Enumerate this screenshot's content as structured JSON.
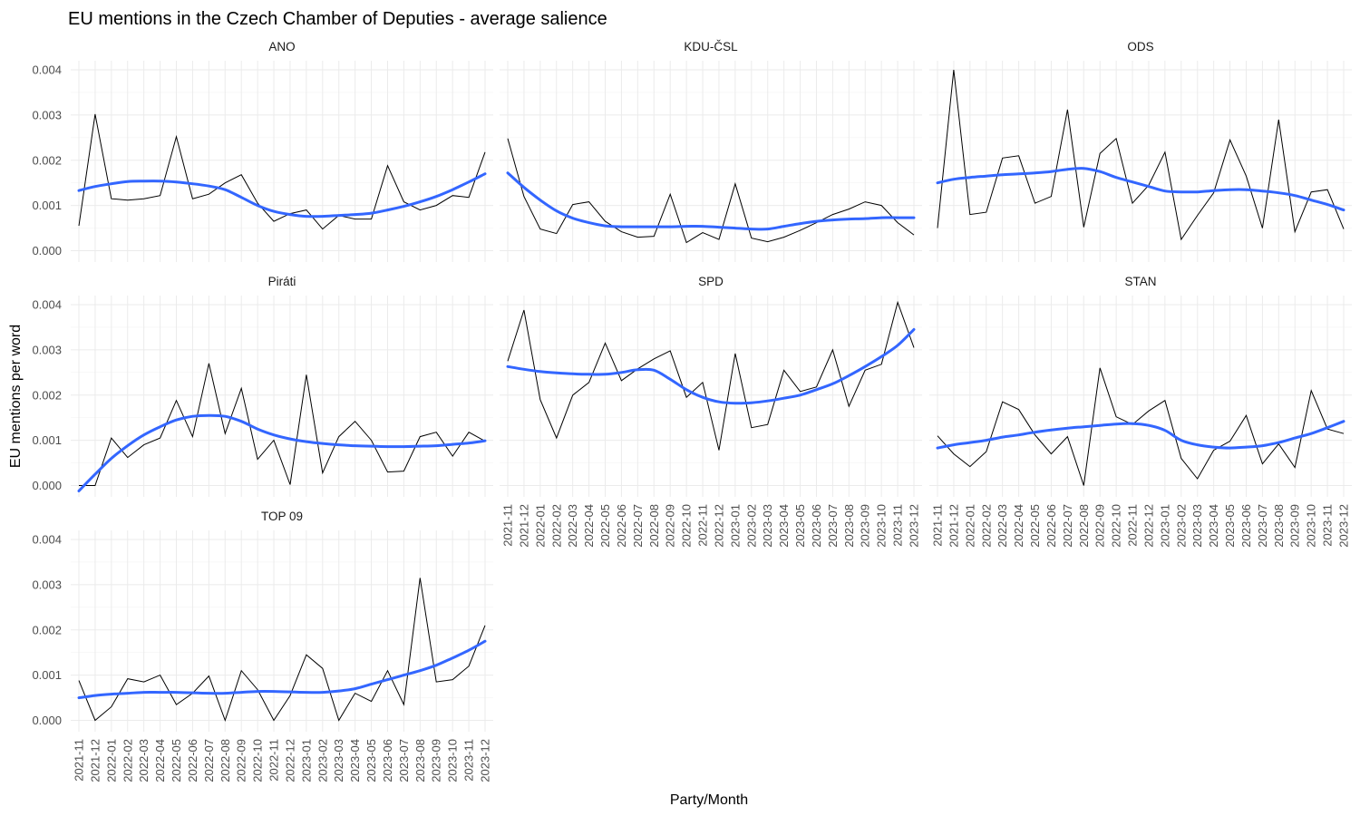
{
  "chart_data": {
    "type": "line",
    "title": "EU mentions in the Czech Chamber of Deputies - average salience",
    "xlabel": "Party/Month",
    "ylabel": "EU mentions per word",
    "ylim": [
      -0.00025,
      0.0042
    ],
    "y_ticks": [
      "0.000",
      "0.001",
      "0.002",
      "0.003",
      "0.004"
    ],
    "y_tick_values": [
      0,
      0.001,
      0.002,
      0.003,
      0.004
    ],
    "grid": true,
    "colors": {
      "raw": "#000000",
      "smooth": "#3366ff"
    },
    "categories": [
      "2021-11",
      "2021-12",
      "2022-01",
      "2022-02",
      "2022-03",
      "2022-04",
      "2022-05",
      "2022-06",
      "2022-07",
      "2022-08",
      "2022-09",
      "2022-10",
      "2022-11",
      "2022-12",
      "2023-01",
      "2023-02",
      "2023-03",
      "2023-04",
      "2023-05",
      "2023-06",
      "2023-07",
      "2023-08",
      "2023-09",
      "2023-10",
      "2023-11",
      "2023-12"
    ],
    "panels": [
      {
        "name": "ANO",
        "values": [
          0.00055,
          0.00302,
          0.00115,
          0.00112,
          0.00115,
          0.00122,
          0.00252,
          0.00115,
          0.00125,
          0.0015,
          0.00168,
          0.00105,
          0.00065,
          0.00082,
          0.0009,
          0.00048,
          0.00078,
          0.0007,
          0.0007,
          0.00188,
          0.00108,
          0.0009,
          0.001,
          0.00122,
          0.00118,
          0.00218
        ],
        "smooth": [
          0.00133,
          0.00142,
          0.00148,
          0.00153,
          0.00154,
          0.00154,
          0.00152,
          0.00148,
          0.00143,
          0.00135,
          0.00118,
          0.001,
          0.00087,
          0.0008,
          0.00076,
          0.00076,
          0.00078,
          0.0008,
          0.00083,
          0.0009,
          0.00098,
          0.00108,
          0.0012,
          0.00135,
          0.00152,
          0.0017
        ]
      },
      {
        "name": "KDU-ČSL",
        "values": [
          0.00248,
          0.0012,
          0.00048,
          0.00038,
          0.00102,
          0.00108,
          0.00065,
          0.00042,
          0.0003,
          0.00032,
          0.00125,
          0.00018,
          0.0004,
          0.00025,
          0.00148,
          0.00028,
          0.0002,
          0.0003,
          0.00045,
          0.00062,
          0.0008,
          0.00092,
          0.00108,
          0.001,
          0.00062,
          0.00035
        ],
        "smooth": [
          0.00172,
          0.0014,
          0.00112,
          0.00088,
          0.00072,
          0.00062,
          0.00055,
          0.00053,
          0.00053,
          0.00053,
          0.00053,
          0.00054,
          0.00054,
          0.00052,
          0.0005,
          0.00048,
          0.00048,
          0.00054,
          0.0006,
          0.00065,
          0.00068,
          0.0007,
          0.00071,
          0.00073,
          0.00073,
          0.00073
        ]
      },
      {
        "name": "ODS",
        "values": [
          0.0005,
          0.004,
          0.0008,
          0.00085,
          0.00205,
          0.0021,
          0.00105,
          0.0012,
          0.00312,
          0.00052,
          0.00215,
          0.00248,
          0.00105,
          0.00145,
          0.00218,
          0.00025,
          0.00078,
          0.00128,
          0.00245,
          0.00165,
          0.0005,
          0.0029,
          0.00042,
          0.0013,
          0.00135,
          0.00048
        ],
        "smooth": [
          0.0015,
          0.00158,
          0.00162,
          0.00165,
          0.00168,
          0.0017,
          0.00172,
          0.00175,
          0.0018,
          0.00182,
          0.00175,
          0.00162,
          0.00152,
          0.00142,
          0.00132,
          0.0013,
          0.0013,
          0.00133,
          0.00135,
          0.00135,
          0.00132,
          0.00128,
          0.00122,
          0.00112,
          0.00102,
          0.0009
        ]
      },
      {
        "name": "Piráti",
        "values": [
          0.0,
          0.0,
          0.00105,
          0.00062,
          0.0009,
          0.00105,
          0.00188,
          0.00108,
          0.0027,
          0.00115,
          0.00215,
          0.00058,
          0.001,
          2e-05,
          0.00245,
          0.00028,
          0.00108,
          0.00142,
          0.001,
          0.0003,
          0.00032,
          0.00108,
          0.00118,
          0.00065,
          0.00118,
          0.00098
        ],
        "smooth": [
          -0.00012,
          0.00025,
          0.0006,
          0.00088,
          0.00112,
          0.0013,
          0.00145,
          0.00153,
          0.00155,
          0.00153,
          0.00142,
          0.00125,
          0.00112,
          0.00103,
          0.00097,
          0.00093,
          0.0009,
          0.00088,
          0.00087,
          0.00086,
          0.00086,
          0.00087,
          0.00088,
          0.00091,
          0.00094,
          0.00099
        ]
      },
      {
        "name": "SPD",
        "values": [
          0.00275,
          0.00388,
          0.0019,
          0.00105,
          0.002,
          0.00228,
          0.00315,
          0.00232,
          0.00258,
          0.0028,
          0.00298,
          0.00195,
          0.00228,
          0.00078,
          0.00292,
          0.00128,
          0.00135,
          0.00255,
          0.00208,
          0.00218,
          0.003,
          0.00175,
          0.00255,
          0.00268,
          0.00405,
          0.00305
        ],
        "smooth": [
          0.00263,
          0.00257,
          0.00252,
          0.00249,
          0.00247,
          0.00246,
          0.00246,
          0.0025,
          0.00256,
          0.00255,
          0.00235,
          0.00212,
          0.00195,
          0.00185,
          0.00182,
          0.00183,
          0.00187,
          0.00193,
          0.002,
          0.00212,
          0.00225,
          0.00243,
          0.00263,
          0.00285,
          0.0031,
          0.00345
        ]
      },
      {
        "name": "STAN",
        "values": [
          0.0011,
          0.0007,
          0.00042,
          0.00075,
          0.00185,
          0.00168,
          0.00112,
          0.0007,
          0.00108,
          0.0,
          0.0026,
          0.00152,
          0.00135,
          0.00165,
          0.00188,
          0.0006,
          0.00015,
          0.00078,
          0.00098,
          0.00155,
          0.00048,
          0.00092,
          0.0004,
          0.0021,
          0.00125,
          0.00115
        ],
        "smooth": [
          0.00083,
          0.0009,
          0.00095,
          0.001,
          0.00107,
          0.00112,
          0.00118,
          0.00123,
          0.00127,
          0.0013,
          0.00133,
          0.00136,
          0.00137,
          0.00133,
          0.00122,
          0.001,
          0.0009,
          0.00085,
          0.00083,
          0.00085,
          0.00088,
          0.00095,
          0.00105,
          0.00115,
          0.00128,
          0.00142
        ]
      },
      {
        "name": "TOP 09",
        "values": [
          0.00088,
          0.0,
          0.0003,
          0.00092,
          0.00085,
          0.001,
          0.00035,
          0.0006,
          0.00098,
          0.0,
          0.0011,
          0.00068,
          0.0,
          0.00055,
          0.00145,
          0.00115,
          0.0,
          0.0006,
          0.00042,
          0.0011,
          0.00035,
          0.00315,
          0.00085,
          0.0009,
          0.0012,
          0.0021
        ],
        "smooth": [
          0.0005,
          0.00055,
          0.00058,
          0.0006,
          0.00062,
          0.00062,
          0.00062,
          0.00061,
          0.0006,
          0.0006,
          0.00062,
          0.00064,
          0.00064,
          0.00063,
          0.00062,
          0.00062,
          0.00065,
          0.0007,
          0.0008,
          0.0009,
          0.001,
          0.0011,
          0.00122,
          0.00138,
          0.00155,
          0.00175
        ]
      }
    ]
  }
}
